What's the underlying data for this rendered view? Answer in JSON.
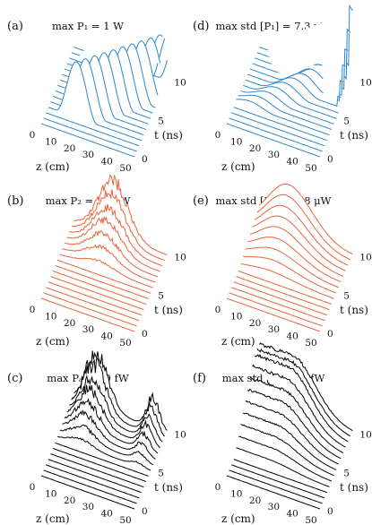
{
  "chart_data": [
    {
      "type": "line",
      "panel": "(a)",
      "title": "max P₁ = 1 W",
      "xlabel": "z (cm)",
      "ylabel": "t (ns)",
      "x_ticks": [
        "0",
        "10",
        "20",
        "30",
        "40",
        "50"
      ],
      "y_ticks": [
        "0",
        "5",
        "10"
      ],
      "color": "#2e86c9",
      "series_count": 15,
      "shape": "traveling pump pulse: sinusoidal ridges advancing along z for successive t; amplitude up to 1 (normalized)"
    },
    {
      "type": "line",
      "panel": "(d)",
      "title": "max std [P₁] = 7.3 μW",
      "xlabel": "z (cm)",
      "ylabel": "t (ns)",
      "x_ticks": [
        "0",
        "10",
        "20",
        "30",
        "40",
        "50"
      ],
      "y_ticks": [
        "0",
        "5",
        "10"
      ],
      "color": "#2e86c9",
      "series_count": 15,
      "shape": "standard deviation of P₁: low humps growing toward later t, with a sharp spike near z = 50 cm"
    },
    {
      "type": "line",
      "panel": "(b)",
      "title": "max P₂ = 10 μW",
      "xlabel": "z (cm)",
      "ylabel": "t (ns)",
      "x_ticks": [
        "0",
        "10",
        "20",
        "30",
        "40",
        "50"
      ],
      "y_ticks": [
        "0",
        "5",
        "10"
      ],
      "color": "#e8643a",
      "series_count": 15,
      "shape": "noisy Stokes growth in the middle of the fiber at late t"
    },
    {
      "type": "line",
      "panel": "(e)",
      "title": "max std [P₂] = 4.8 μW",
      "xlabel": "z (cm)",
      "ylabel": "t (ns)",
      "x_ticks": [
        "0",
        "10",
        "20",
        "30",
        "40",
        "50"
      ],
      "y_ticks": [
        "0",
        "5",
        "10"
      ],
      "color": "#e8643a",
      "series_count": 15,
      "shape": "smooth dome of std[P₂] rising then decaying along z"
    },
    {
      "type": "line",
      "panel": "(c)",
      "title": "max Pₐ = 19 fW",
      "xlabel": "z (cm)",
      "ylabel": "t (ns)",
      "x_ticks": [
        "0",
        "10",
        "20",
        "30",
        "40",
        "50"
      ],
      "y_ticks": [
        "0",
        "5",
        "10"
      ],
      "color": "#000000",
      "series_count": 15,
      "shape": "noisy acoustic power: large hump at small z and secondary hump near the far end"
    },
    {
      "type": "line",
      "panel": "(f)",
      "title": "max std [Pₐ] = 6 fW",
      "xlabel": "z (cm)",
      "ylabel": "t (ns)",
      "x_ticks": [
        "0",
        "10",
        "20",
        "30",
        "40",
        "50"
      ],
      "y_ticks": [
        "0",
        "5",
        "10"
      ],
      "color": "#000000",
      "series_count": 15,
      "shape": "std[Pₐ]: plateau that rises with t and decays along z, slightly noisy"
    }
  ]
}
